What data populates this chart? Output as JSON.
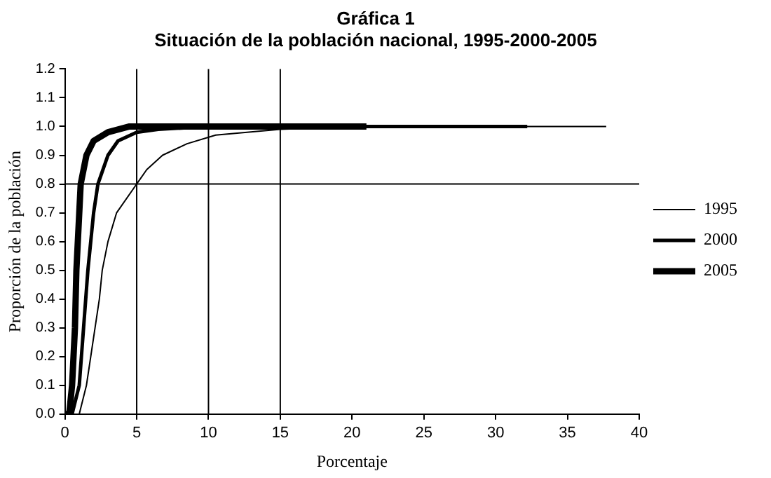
{
  "chart_data": {
    "type": "line",
    "title": "Gráfica 1",
    "subtitle": "Situación de la población nacional, 1995-2000-2005",
    "xlabel": "Porcentaje",
    "ylabel": "Proporción de la población",
    "xlim": [
      0,
      40
    ],
    "xticks": [
      0,
      5,
      10,
      15,
      20,
      25,
      30,
      35,
      40
    ],
    "ylim": [
      0,
      1.2
    ],
    "yticks": [
      {
        "value": 0,
        "label": "0.0"
      },
      {
        "value": 0.1,
        "label": "0.1"
      },
      {
        "value": 0.2,
        "label": "0.2"
      },
      {
        "value": 0.3,
        "label": "0.3"
      },
      {
        "value": 0.4,
        "label": "0.4"
      },
      {
        "value": 0.5,
        "label": "0.5"
      },
      {
        "value": 0.6,
        "label": "0.6"
      },
      {
        "value": 0.7,
        "label": "0.7"
      },
      {
        "value": 0.8,
        "label": "0.8"
      },
      {
        "value": 0.9,
        "label": "0.9"
      },
      {
        "value": 1,
        "label": "1.0"
      },
      {
        "value": 1.1,
        "label": "1.1"
      },
      {
        "value": 1.2,
        "label": "1.2"
      }
    ],
    "grid": false,
    "legend": "right",
    "marker": "none",
    "line_style": "solid",
    "ref_lines": [
      {
        "axis": "x",
        "value": 5,
        "color": "#000000"
      },
      {
        "axis": "x",
        "value": 10,
        "color": "#000000"
      },
      {
        "axis": "x",
        "value": 15,
        "color": "#000000"
      },
      {
        "axis": "y",
        "value": 0.8,
        "color": "#000000"
      }
    ],
    "series": [
      {
        "name": "1995",
        "color": "#000000",
        "x": [
          1.0,
          1.5,
          1.8,
          2.1,
          2.4,
          2.6,
          3.0,
          3.6,
          5.0,
          5.7,
          6.8,
          8.5,
          10.5,
          15,
          20,
          37.7
        ],
        "values": [
          0,
          0.1,
          0.2,
          0.3,
          0.4,
          0.5,
          0.6,
          0.7,
          0.8,
          0.85,
          0.9,
          0.94,
          0.97,
          0.99,
          1.0,
          1.0
        ]
      },
      {
        "name": "2000",
        "color": "#000000",
        "x": [
          0.5,
          1.0,
          1.3,
          1.6,
          2.0,
          2.3,
          3.0,
          3.7,
          5.0,
          6.5,
          10,
          32.2
        ],
        "values": [
          0,
          0.1,
          0.3,
          0.5,
          0.7,
          0.8,
          0.9,
          0.95,
          0.98,
          0.99,
          1.0,
          1.0
        ]
      },
      {
        "name": "2005",
        "color": "#000000",
        "x": [
          0,
          0.3,
          0.5,
          0.7,
          0.8,
          1.0,
          1.1,
          1.5,
          2.0,
          3.0,
          4.5,
          21
        ],
        "values": [
          0,
          0,
          0.1,
          0.3,
          0.5,
          0.7,
          0.8,
          0.9,
          0.95,
          0.98,
          1.0,
          1.0
        ]
      }
    ]
  }
}
